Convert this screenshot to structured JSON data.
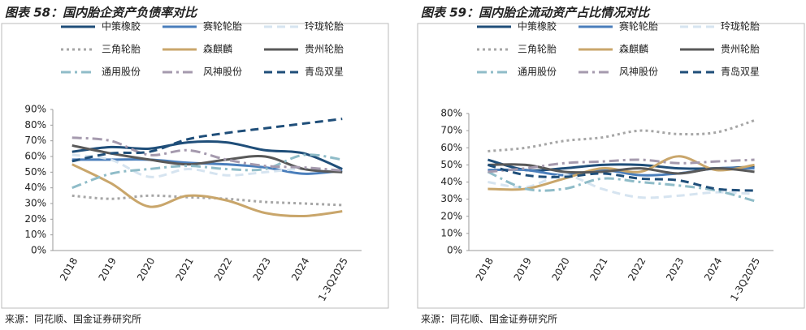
{
  "chart_data": [
    {
      "type": "line",
      "title": "图表 58：国内胎企资产负债率对比",
      "source": "来源：同花顺、国金证券研究所",
      "categories": [
        "2018",
        "2019",
        "2020",
        "2021",
        "2022",
        "2023",
        "2024",
        "1-3Q2025"
      ],
      "ylim": [
        0,
        90
      ],
      "yticks": [
        {
          "value": 0,
          "label": "0%"
        },
        {
          "value": 10,
          "label": "10%"
        },
        {
          "value": 20,
          "label": "20%"
        },
        {
          "value": 30,
          "label": "30%"
        },
        {
          "value": 40,
          "label": "40%"
        },
        {
          "value": 50,
          "label": "50%"
        },
        {
          "value": 60,
          "label": "60%"
        },
        {
          "value": 70,
          "label": "70%"
        },
        {
          "value": 80,
          "label": "80%"
        },
        {
          "value": 90,
          "label": "90%"
        }
      ],
      "series": [
        {
          "name": "中策橡胶",
          "color": "#1f4e79",
          "dash": "solid",
          "values": [
            63,
            66,
            65,
            69,
            69,
            64,
            62,
            52
          ]
        },
        {
          "name": "赛轮轮胎",
          "color": "#4a7ebb",
          "dash": "solid",
          "values": [
            58,
            58,
            58,
            56,
            55,
            53,
            49,
            51
          ]
        },
        {
          "name": "玲珑轮胎",
          "color": "#d6e4f0",
          "dash": "dash",
          "values": [
            61,
            58,
            47,
            52,
            48,
            50,
            52,
            50
          ]
        },
        {
          "name": "三角轮胎",
          "color": "#a6a6a6",
          "dash": "dot",
          "values": [
            35,
            33,
            35,
            34,
            33,
            31,
            30,
            29
          ]
        },
        {
          "name": "森麒麟",
          "color": "#c9a66b",
          "dash": "solid",
          "values": [
            55,
            43,
            28,
            35,
            32,
            24,
            22,
            25
          ]
        },
        {
          "name": "贵州轮胎",
          "color": "#595959",
          "dash": "solid",
          "values": [
            67,
            62,
            58,
            55,
            58,
            60,
            52,
            50
          ]
        },
        {
          "name": "通用股份",
          "color": "#8fbcc8",
          "dash": "dashdot",
          "values": [
            40,
            49,
            52,
            54,
            52,
            52,
            61,
            58
          ]
        },
        {
          "name": "风神股份",
          "color": "#a59aae",
          "dash": "dashdot",
          "values": [
            72,
            70,
            61,
            64,
            58,
            54,
            53,
            51
          ]
        },
        {
          "name": "青岛双星",
          "color": "#1f4e79",
          "dash": "dash",
          "values": [
            57,
            62,
            63,
            71,
            75,
            78,
            81,
            84
          ]
        }
      ]
    },
    {
      "type": "line",
      "title": "图表 59：国内胎企流动资产占比情况对比",
      "source": "来源：同花顺、国金证券研究所",
      "categories": [
        "2018",
        "2019",
        "2020",
        "2021",
        "2022",
        "2023",
        "2024",
        "1-3Q2025"
      ],
      "ylim": [
        0,
        80
      ],
      "yticks": [
        {
          "value": 0,
          "label": "0%"
        },
        {
          "value": 10,
          "label": "10%"
        },
        {
          "value": 20,
          "label": "20%"
        },
        {
          "value": 30,
          "label": "30%"
        },
        {
          "value": 40,
          "label": "40%"
        },
        {
          "value": 50,
          "label": "50%"
        },
        {
          "value": 60,
          "label": "60%"
        },
        {
          "value": 70,
          "label": "70%"
        },
        {
          "value": 80,
          "label": "80%"
        }
      ],
      "series": [
        {
          "name": "中策橡胶",
          "color": "#1f4e79",
          "dash": "solid",
          "values": [
            53,
            47,
            48,
            50,
            50,
            48,
            48,
            49
          ]
        },
        {
          "name": "赛轮轮胎",
          "color": "#4a7ebb",
          "dash": "solid",
          "values": [
            47,
            47,
            44,
            47,
            44,
            45,
            48,
            48
          ]
        },
        {
          "name": "玲珑轮胎",
          "color": "#d6e4f0",
          "dash": "dash",
          "values": [
            40,
            37,
            44,
            36,
            31,
            32,
            34,
            33
          ]
        },
        {
          "name": "三角轮胎",
          "color": "#a6a6a6",
          "dash": "dot",
          "values": [
            58,
            60,
            64,
            66,
            70,
            68,
            69,
            76
          ]
        },
        {
          "name": "森麒麟",
          "color": "#c9a66b",
          "dash": "solid",
          "values": [
            36,
            36,
            42,
            48,
            46,
            55,
            47,
            50
          ]
        },
        {
          "name": "贵州轮胎",
          "color": "#595959",
          "dash": "solid",
          "values": [
            50,
            50,
            46,
            46,
            48,
            45,
            48,
            46
          ]
        },
        {
          "name": "通用股份",
          "color": "#8fbcc8",
          "dash": "dashdot",
          "values": [
            46,
            36,
            36,
            42,
            40,
            38,
            35,
            29
          ]
        },
        {
          "name": "风神股份",
          "color": "#a59aae",
          "dash": "dashdot",
          "values": [
            46,
            48,
            51,
            52,
            53,
            51,
            52,
            53
          ]
        },
        {
          "name": "青岛双星",
          "color": "#1f4e79",
          "dash": "dash",
          "values": [
            50,
            44,
            43,
            45,
            42,
            41,
            36,
            35
          ]
        }
      ]
    }
  ]
}
